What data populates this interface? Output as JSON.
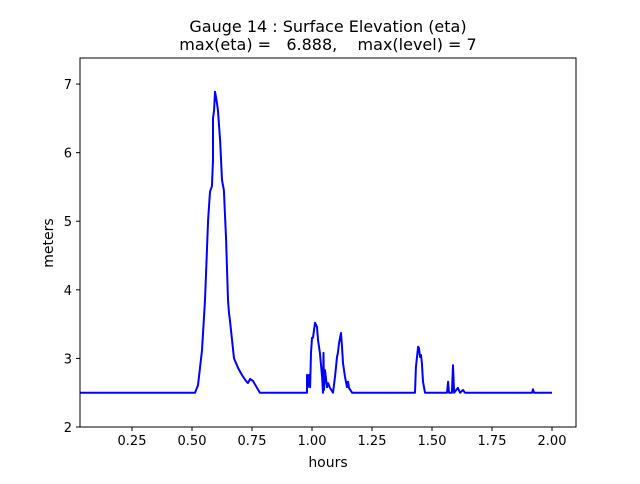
{
  "chart_data": {
    "type": "line",
    "title": "Gauge 14 : Surface Elevation (eta)",
    "subtitle": "max(eta) =   6.888,    max(level) = 7",
    "xlabel": "hours",
    "ylabel": "meters",
    "xlim": [
      0.0333,
      2.1
    ],
    "ylim": [
      2.0,
      7.38
    ],
    "xticks": [
      "0.25",
      "0.50",
      "0.75",
      "1.00",
      "1.25",
      "1.50",
      "1.75",
      "2.00"
    ],
    "xtick_values": [
      0.25,
      0.5,
      0.75,
      1.0,
      1.25,
      1.5,
      1.75,
      2.0
    ],
    "yticks": [
      "2",
      "3",
      "4",
      "5",
      "6",
      "7"
    ],
    "ytick_values": [
      2,
      3,
      4,
      5,
      6,
      7
    ],
    "grid": false,
    "series": [
      {
        "name": "eta",
        "color": "#0000ff",
        "x": [
          0.0333,
          0.5125,
          0.525,
          0.5417,
          0.554,
          0.567,
          0.575,
          0.583,
          0.5875,
          0.5875,
          0.592,
          0.596,
          0.6,
          0.604,
          0.608,
          0.617,
          0.625,
          0.633,
          0.642,
          0.65,
          0.654,
          0.658,
          0.675,
          0.692,
          0.708,
          0.725,
          0.733,
          0.742,
          0.754,
          0.783,
          0.979,
          0.979,
          0.983,
          0.988,
          0.992,
          0.996,
          1.0,
          1.004,
          1.0125,
          1.021,
          1.025,
          1.033,
          1.042,
          1.046,
          1.048,
          1.05,
          1.054,
          1.0625,
          1.067,
          1.075,
          1.0875,
          1.096,
          1.104,
          1.108,
          1.1125,
          1.121,
          1.125,
          1.129,
          1.1375,
          1.146,
          1.15,
          1.154,
          1.167,
          1.429,
          1.433,
          1.442,
          1.446,
          1.45,
          1.454,
          1.458,
          1.4625,
          1.471,
          1.5625,
          1.567,
          1.571,
          1.583,
          1.5875,
          1.592,
          1.608,
          1.617,
          1.629,
          1.6375,
          1.917,
          1.921,
          1.925,
          2.0
        ],
        "y": [
          2.5,
          2.5,
          2.61,
          3.12,
          3.85,
          5.02,
          5.43,
          5.51,
          5.89,
          6.5,
          6.62,
          6.888,
          6.81,
          6.72,
          6.62,
          6.18,
          5.6,
          5.45,
          4.73,
          3.85,
          3.66,
          3.56,
          3.0,
          2.86,
          2.76,
          2.67,
          2.64,
          2.7,
          2.67,
          2.5,
          2.5,
          2.76,
          2.58,
          2.76,
          2.58,
          3.08,
          3.3,
          3.3,
          3.52,
          3.46,
          3.27,
          3.08,
          2.73,
          2.5,
          3.08,
          2.54,
          2.83,
          2.58,
          2.64,
          2.57,
          2.5,
          2.73,
          3.02,
          3.08,
          3.22,
          3.37,
          3.17,
          2.93,
          2.73,
          2.58,
          2.66,
          2.57,
          2.5,
          2.5,
          2.87,
          3.17,
          3.15,
          3.02,
          3.05,
          2.93,
          2.66,
          2.5,
          2.5,
          2.66,
          2.5,
          2.5,
          2.9,
          2.5,
          2.57,
          2.5,
          2.54,
          2.5,
          2.5,
          2.55,
          2.5,
          2.5
        ]
      }
    ]
  }
}
